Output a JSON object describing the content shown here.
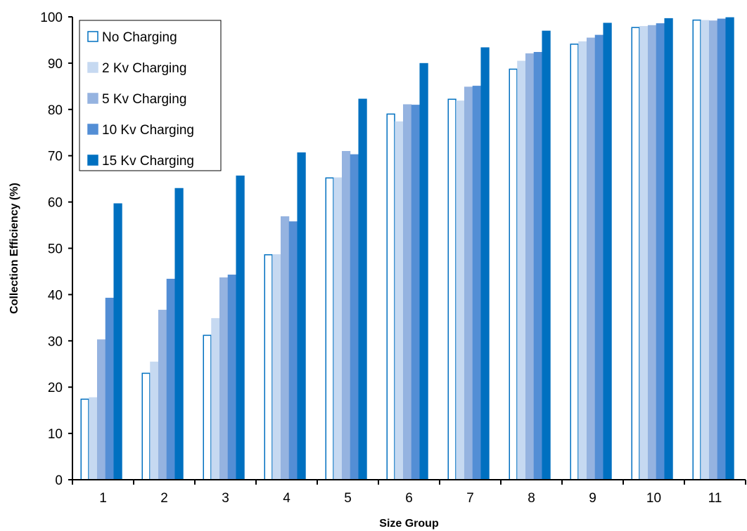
{
  "chart_data": {
    "type": "bar",
    "title": "",
    "xlabel": "Size Group",
    "ylabel": "Collection Efficiency (%)",
    "ylim": [
      0,
      100
    ],
    "yticks": [
      "0",
      "10",
      "20",
      "30",
      "40",
      "50",
      "60",
      "70",
      "80",
      "90",
      "100"
    ],
    "categories": [
      "1",
      "2",
      "3",
      "4",
      "5",
      "6",
      "7",
      "8",
      "9",
      "10",
      "11"
    ],
    "grid": false,
    "legend_position": "top-left",
    "series": [
      {
        "name": "No Charging",
        "color": "#ffffff",
        "stroke": "#0070c0",
        "values": [
          17.4,
          23.0,
          31.2,
          48.6,
          65.2,
          79.0,
          82.2,
          88.7,
          94.1,
          97.7,
          99.3
        ]
      },
      {
        "name": "2 Kv Charging",
        "color": "#c6d9f1",
        "stroke": "#c6d9f1",
        "values": [
          17.7,
          25.4,
          34.8,
          48.6,
          65.2,
          77.3,
          81.8,
          90.4,
          94.6,
          97.9,
          99.2
        ]
      },
      {
        "name": "5 Kv Charging",
        "color": "#95b3e0",
        "stroke": "#95b3e0",
        "values": [
          30.2,
          36.6,
          43.6,
          56.8,
          70.9,
          81.0,
          84.8,
          92.0,
          95.4,
          98.1,
          99.1
        ]
      },
      {
        "name": "10 Kv Charging",
        "color": "#538ed5",
        "stroke": "#538ed5",
        "values": [
          39.2,
          43.3,
          44.2,
          55.7,
          70.2,
          80.9,
          85.0,
          92.3,
          96.0,
          98.5,
          99.5
        ]
      },
      {
        "name": "15 Kv Charging",
        "color": "#0070c0",
        "stroke": "#0070c0",
        "values": [
          59.6,
          62.9,
          65.6,
          70.6,
          82.2,
          89.9,
          93.3,
          96.9,
          98.6,
          99.6,
          99.8
        ]
      }
    ]
  }
}
